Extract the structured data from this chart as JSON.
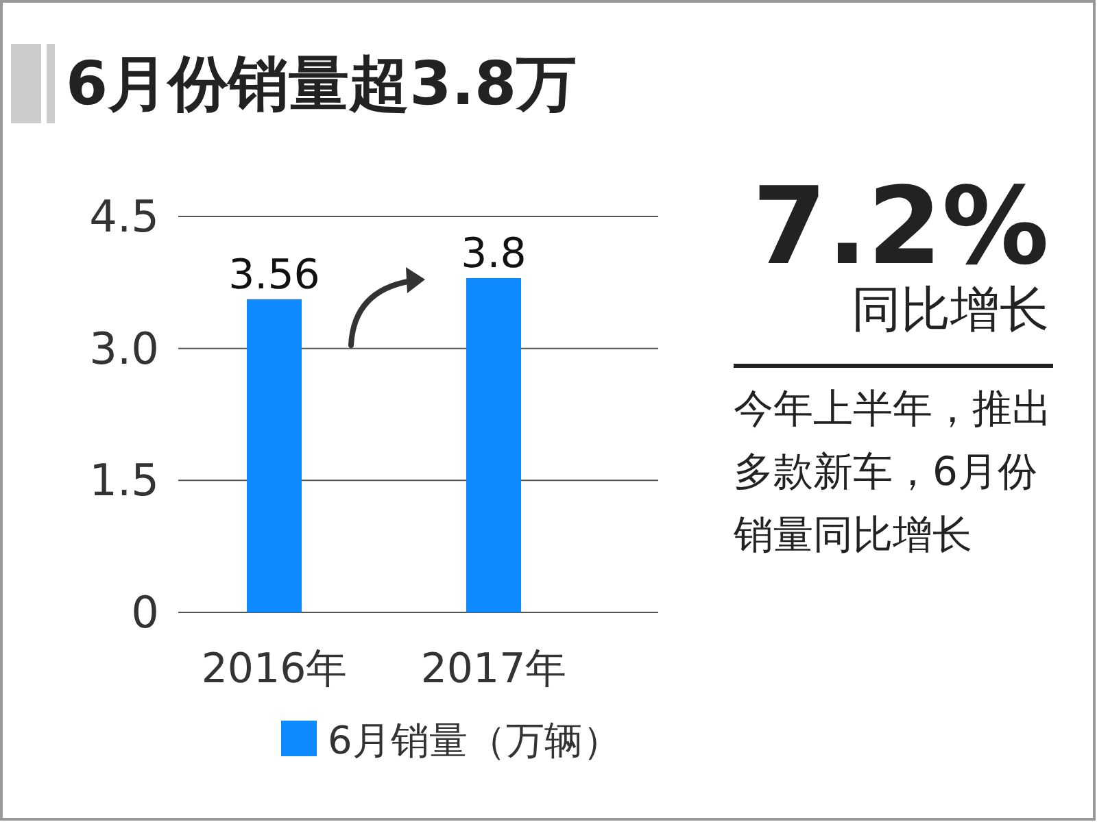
{
  "chart_data": {
    "type": "bar",
    "title": "6月份销量超3.8万",
    "categories": [
      "2016年",
      "2017年"
    ],
    "series": [
      {
        "name": "6月销量（万辆）",
        "color": "#0d8bff",
        "values": [
          3.56,
          3.8
        ]
      }
    ],
    "data_labels": true,
    "ylim": [
      0,
      4.5
    ],
    "yticks": [
      0,
      1.5,
      {
        "value": 3,
        "label": "3.0"
      },
      4.5
    ],
    "grid": "y",
    "legend": "bottom",
    "annotations": [
      "7.2%",
      "同比增长",
      "今年上半年，推出多款新车，6月份销量同比增长"
    ]
  }
}
